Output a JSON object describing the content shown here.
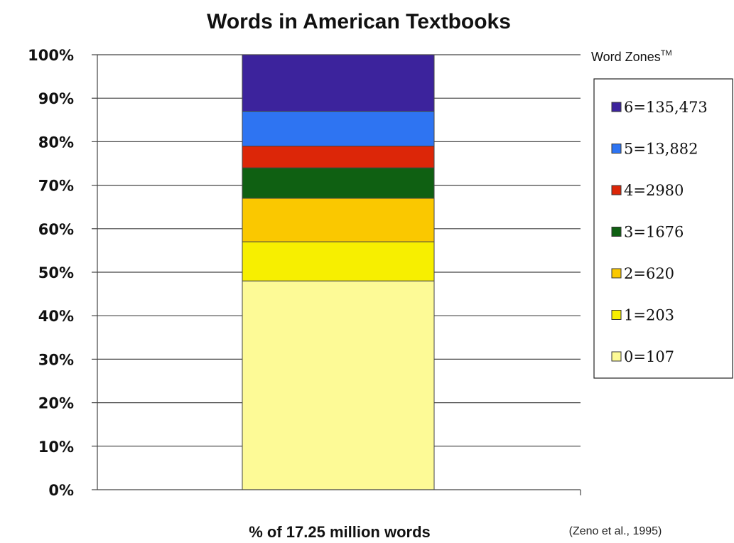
{
  "chart_data": {
    "type": "bar",
    "stacked": true,
    "title": "Words in American Textbooks",
    "xlabel": "% of 17.25 million words",
    "ylabel": "",
    "ylim": [
      0,
      100
    ],
    "yticks": [
      "0%",
      "10%",
      "20%",
      "30%",
      "40%",
      "50%",
      "60%",
      "70%",
      "80%",
      "90%",
      "100%"
    ],
    "grid": true,
    "legend_title": "Word Zones",
    "legend_title_sup": "TM",
    "legend_position": "right",
    "source_note": "(Zeno et al., 1995)",
    "series": [
      {
        "name": "0=107",
        "values": [
          48
        ],
        "color": "#fdfa96"
      },
      {
        "name": "1=203",
        "values": [
          9
        ],
        "color": "#f7ef00"
      },
      {
        "name": "2=620",
        "values": [
          10
        ],
        "color": "#fac800"
      },
      {
        "name": "3=1676",
        "values": [
          7
        ],
        "color": "#0f6012"
      },
      {
        "name": "4=2980",
        "values": [
          5
        ],
        "color": "#dc2608"
      },
      {
        "name": "5=13,882",
        "values": [
          8
        ],
        "color": "#2e74f2"
      },
      {
        "name": "6=135,473",
        "values": [
          13
        ],
        "color": "#3c239c"
      }
    ]
  }
}
